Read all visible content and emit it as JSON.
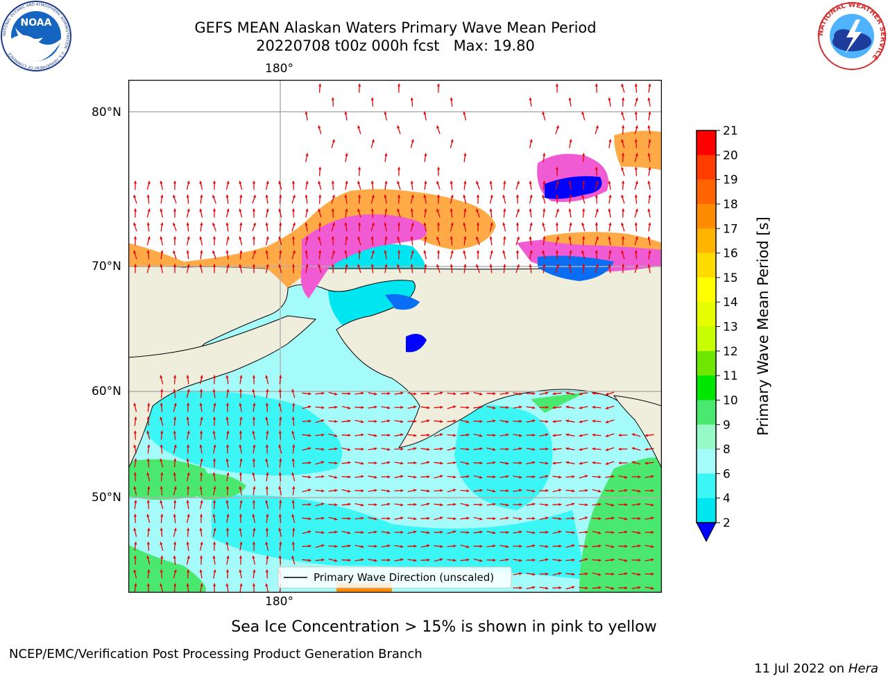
{
  "header": {
    "title_line1": "GEFS MEAN Alaskan Waters Primary Wave Mean Period",
    "title_line2": "20220708 t00z 000h fcst   Max: 19.80",
    "noaa_logo_text": "NOAA",
    "noaa_ring_text": "NATIONAL OCEANIC AND ATMOSPHERIC ADMINISTRATION · U.S. DEPARTMENT OF COMMERCE",
    "nws_ring_text": "NATIONAL WEATHER SERVICE"
  },
  "map": {
    "top_lon_label": "180°",
    "bottom_lon_label": "180°",
    "lat_labels": [
      "80°N",
      "70°N",
      "60°N",
      "50°N"
    ],
    "legend_label": "Primary Wave Direction (unscaled)",
    "colors": {
      "land": "#efeddc",
      "ocean_light": "#a5fafa",
      "ocean_cyan": "#3cf5f5",
      "ocean_mid": "#00e6f0",
      "blue": "#0a6ef5",
      "green": "#4ae86e",
      "ice_pink": "#f05ad2",
      "ice_orange": "#ffaa46",
      "arrow": "#e60000"
    }
  },
  "colorbar": {
    "label": "Primary Wave Mean Period [s]",
    "ticks": [
      "21",
      "20",
      "19",
      "18",
      "17",
      "16",
      "15",
      "14",
      "13",
      "12",
      "11",
      "10",
      "9",
      "8",
      "6",
      "4",
      "2"
    ],
    "colors": [
      "#ff0000",
      "#ff3c00",
      "#ff6400",
      "#ff8c00",
      "#ffb400",
      "#ffdc00",
      "#ffff00",
      "#e6ff00",
      "#c8ff00",
      "#6ee600",
      "#00e600",
      "#4ae86e",
      "#96fac8",
      "#a5fafa",
      "#3cf5f5",
      "#00e6f0",
      "#0a6ef5"
    ],
    "extend_color": "#0000ff"
  },
  "footer": {
    "caption": "Sea Ice Concentration > 15% is shown in pink to yellow",
    "left": "NCEP/EMC/Verification Post Processing Product Generation Branch",
    "date": "11 Jul 2022 on ",
    "machine": "Hera"
  }
}
